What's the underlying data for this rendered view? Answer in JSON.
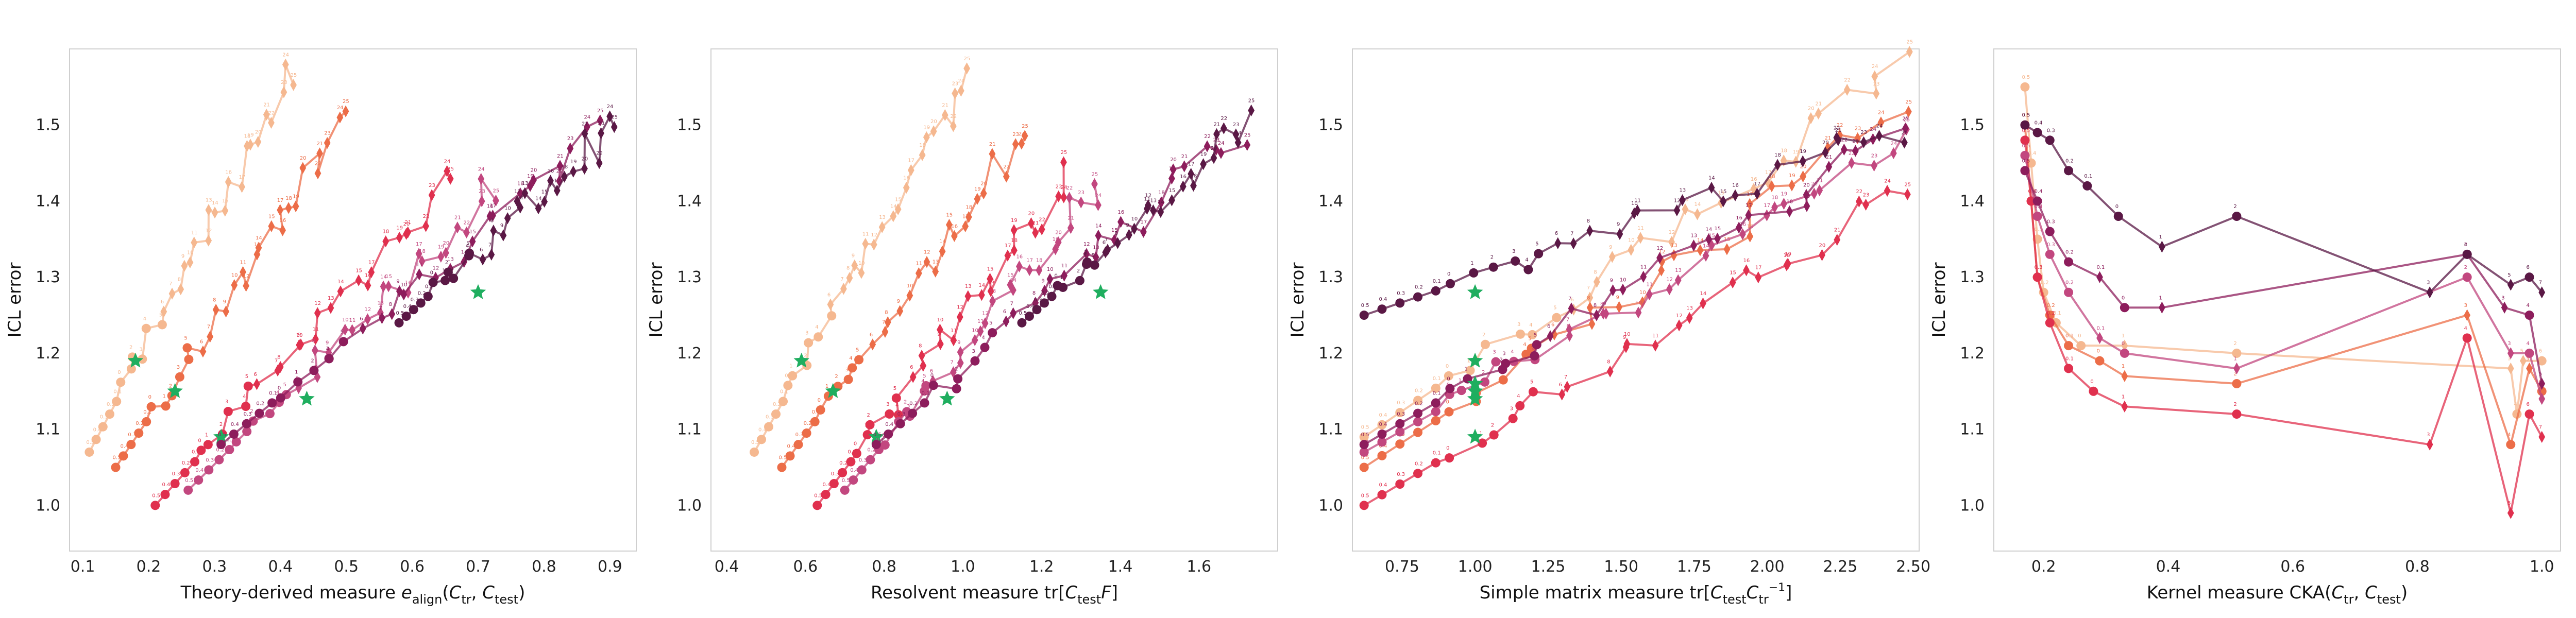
{
  "palette": [
    "#f5b890",
    "#ec6d48",
    "#e0304e",
    "#c2477f",
    "#8d1d5c",
    "#5a1845"
  ],
  "marker_color_green": "#1fae5f",
  "chart_data": [
    {
      "type": "line",
      "xlabel": "Theory-derived measure e_align(C_tr, C_test)",
      "xlabel_parts": [
        "Theory-derived measure ",
        "e",
        "align",
        "(",
        "C",
        "tr",
        ", ",
        "C",
        "test",
        ")"
      ],
      "ylabel": "ICL error",
      "xlim": [
        0.08,
        0.94
      ],
      "ylim": [
        0.94,
        1.6
      ],
      "xticks": [
        "0.1",
        "0.2",
        "0.3",
        "0.4",
        "0.5",
        "0.6",
        "0.7",
        "0.8",
        "0.9"
      ],
      "yticks": [
        "1.0",
        "1.1",
        "1.2",
        "1.3",
        "1.4",
        "1.5"
      ],
      "series": [
        {
          "x0": 0.11,
          "x1": 0.42,
          "y0": 1.07,
          "y1": 1.57,
          "star": [
            0.18,
            1.19
          ]
        },
        {
          "x0": 0.15,
          "x1": 0.5,
          "y0": 1.05,
          "y1": 1.5,
          "star": [
            0.24,
            1.15
          ]
        },
        {
          "x0": 0.21,
          "x1": 0.66,
          "y0": 1.0,
          "y1": 1.43,
          "star": [
            0.31,
            1.09
          ]
        },
        {
          "x0": 0.26,
          "x1": 0.73,
          "y0": 1.02,
          "y1": 1.42,
          "star": [
            0.44,
            1.14
          ]
        },
        {
          "x0": 0.31,
          "x1": 0.89,
          "y0": 1.08,
          "y1": 1.49,
          "star": [
            0.7,
            1.28
          ]
        },
        {
          "x0": 0.58,
          "x1": 0.91,
          "y0": 1.24,
          "y1": 1.5
        }
      ]
    },
    {
      "type": "line",
      "xlabel": "Resolvent measure tr[C_test F]",
      "xlabel_parts": [
        "Resolvent measure tr[",
        "C",
        "test",
        "F",
        "]"
      ],
      "ylabel": "ICL error",
      "xlim": [
        0.36,
        1.8
      ],
      "ylim": [
        0.94,
        1.6
      ],
      "xticks": [
        "0.4",
        "0.6",
        "0.8",
        "1.0",
        "1.2",
        "1.4",
        "1.6"
      ],
      "yticks": [
        "1.0",
        "1.1",
        "1.2",
        "1.3",
        "1.4",
        "1.5"
      ],
      "series": [
        {
          "x0": 0.47,
          "x1": 1.02,
          "y0": 1.07,
          "y1": 1.57,
          "star": [
            0.59,
            1.19
          ]
        },
        {
          "x0": 0.54,
          "x1": 1.17,
          "y0": 1.05,
          "y1": 1.5,
          "star": [
            0.67,
            1.15
          ]
        },
        {
          "x0": 0.63,
          "x1": 1.27,
          "y0": 1.0,
          "y1": 1.43,
          "star": [
            0.78,
            1.09
          ]
        },
        {
          "x0": 0.7,
          "x1": 1.35,
          "y0": 1.02,
          "y1": 1.42,
          "star": [
            0.96,
            1.14
          ]
        },
        {
          "x0": 0.78,
          "x1": 1.7,
          "y0": 1.08,
          "y1": 1.49,
          "star": [
            1.35,
            1.28
          ]
        },
        {
          "x0": 1.15,
          "x1": 1.72,
          "y0": 1.24,
          "y1": 1.5
        }
      ]
    },
    {
      "type": "line",
      "xlabel": "Simple matrix measure tr[C_test C_tr^-1]",
      "xlabel_parts": [
        "Simple matrix measure tr[",
        "C",
        "test",
        "C",
        "tr",
        "−1",
        "]"
      ],
      "ylabel": "ICL error",
      "xlim": [
        0.58,
        2.52
      ],
      "ylim": [
        0.94,
        1.6
      ],
      "xticks": [
        "0.75",
        "1.00",
        "1.25",
        "1.50",
        "1.75",
        "2.00",
        "2.25",
        "2.50"
      ],
      "yticks": [
        "1.0",
        "1.1",
        "1.2",
        "1.3",
        "1.4",
        "1.5"
      ],
      "series": [
        {
          "x0": 0.62,
          "x1": 2.46,
          "y0": 1.09,
          "y1": 1.57,
          "star": [
            1.0,
            1.19
          ]
        },
        {
          "x0": 0.62,
          "x1": 2.46,
          "y0": 1.05,
          "y1": 1.51,
          "star": [
            1.0,
            1.15
          ]
        },
        {
          "x0": 0.62,
          "x1": 2.46,
          "y0": 1.0,
          "y1": 1.42,
          "star": [
            1.0,
            1.09
          ]
        },
        {
          "x0": 0.62,
          "x1": 2.46,
          "y0": 1.07,
          "y1": 1.47,
          "star": [
            1.0,
            1.14
          ]
        },
        {
          "x0": 0.62,
          "x1": 2.46,
          "y0": 1.08,
          "y1": 1.49,
          "star": [
            1.0,
            1.16
          ]
        },
        {
          "x0": 0.62,
          "x1": 2.46,
          "y0": 1.25,
          "y1": 1.49,
          "star": [
            1.0,
            1.28
          ]
        }
      ]
    },
    {
      "type": "line",
      "xlabel": "Kernel measure CKA(C_tr, C_test)",
      "xlabel_parts": [
        "Kernel measure CKA(",
        "C",
        "tr",
        ", ",
        "C",
        "test",
        ")"
      ],
      "ylabel": "ICL error",
      "xlim": [
        0.12,
        1.03
      ],
      "ylim": [
        0.94,
        1.6
      ],
      "xticks": [
        "0.2",
        "0.4",
        "0.6",
        "0.8",
        "1.0"
      ],
      "yticks": [
        "1.0",
        "1.1",
        "1.2",
        "1.3",
        "1.4",
        "1.5"
      ],
      "series": [
        {
          "points": [
            [
              0.17,
              1.55
            ],
            [
              0.18,
              1.45
            ],
            [
              0.19,
              1.35
            ],
            [
              0.2,
              1.28
            ],
            [
              0.22,
              1.24
            ],
            [
              0.26,
              1.21
            ],
            [
              0.33,
              1.21
            ],
            [
              0.51,
              1.2
            ],
            [
              0.95,
              1.18
            ],
            [
              0.96,
              1.12
            ],
            [
              0.97,
              1.19
            ],
            [
              1.0,
              1.19
            ]
          ]
        },
        {
          "points": [
            [
              0.17,
              1.5
            ],
            [
              0.18,
              1.4
            ],
            [
              0.19,
              1.3
            ],
            [
              0.21,
              1.25
            ],
            [
              0.24,
              1.21
            ],
            [
              0.29,
              1.19
            ],
            [
              0.33,
              1.17
            ],
            [
              0.51,
              1.16
            ],
            [
              0.88,
              1.25
            ],
            [
              0.95,
              1.08
            ],
            [
              0.98,
              1.18
            ],
            [
              1.0,
              1.15
            ]
          ]
        },
        {
          "points": [
            [
              0.17,
              1.48
            ],
            [
              0.18,
              1.4
            ],
            [
              0.19,
              1.3
            ],
            [
              0.21,
              1.24
            ],
            [
              0.24,
              1.18
            ],
            [
              0.28,
              1.15
            ],
            [
              0.33,
              1.13
            ],
            [
              0.51,
              1.12
            ],
            [
              0.82,
              1.08
            ],
            [
              0.88,
              1.22
            ],
            [
              0.95,
              0.99
            ],
            [
              0.98,
              1.12
            ],
            [
              1.0,
              1.09
            ]
          ]
        },
        {
          "points": [
            [
              0.17,
              1.46
            ],
            [
              0.19,
              1.38
            ],
            [
              0.21,
              1.33
            ],
            [
              0.24,
              1.28
            ],
            [
              0.29,
              1.22
            ],
            [
              0.33,
              1.2
            ],
            [
              0.51,
              1.18
            ],
            [
              0.88,
              1.3
            ],
            [
              0.95,
              1.2
            ],
            [
              0.98,
              1.2
            ],
            [
              1.0,
              1.14
            ]
          ]
        },
        {
          "points": [
            [
              0.17,
              1.44
            ],
            [
              0.19,
              1.4
            ],
            [
              0.21,
              1.36
            ],
            [
              0.24,
              1.32
            ],
            [
              0.29,
              1.3
            ],
            [
              0.33,
              1.26
            ],
            [
              0.39,
              1.26
            ],
            [
              0.88,
              1.33
            ],
            [
              0.94,
              1.26
            ],
            [
              0.98,
              1.25
            ],
            [
              1.0,
              1.16
            ]
          ]
        },
        {
          "points": [
            [
              0.17,
              1.5
            ],
            [
              0.19,
              1.49
            ],
            [
              0.21,
              1.48
            ],
            [
              0.24,
              1.44
            ],
            [
              0.27,
              1.42
            ],
            [
              0.32,
              1.38
            ],
            [
              0.39,
              1.34
            ],
            [
              0.51,
              1.38
            ],
            [
              0.82,
              1.28
            ],
            [
              0.88,
              1.33
            ],
            [
              0.95,
              1.29
            ],
            [
              0.98,
              1.3
            ],
            [
              1.0,
              1.28
            ]
          ]
        }
      ]
    }
  ]
}
